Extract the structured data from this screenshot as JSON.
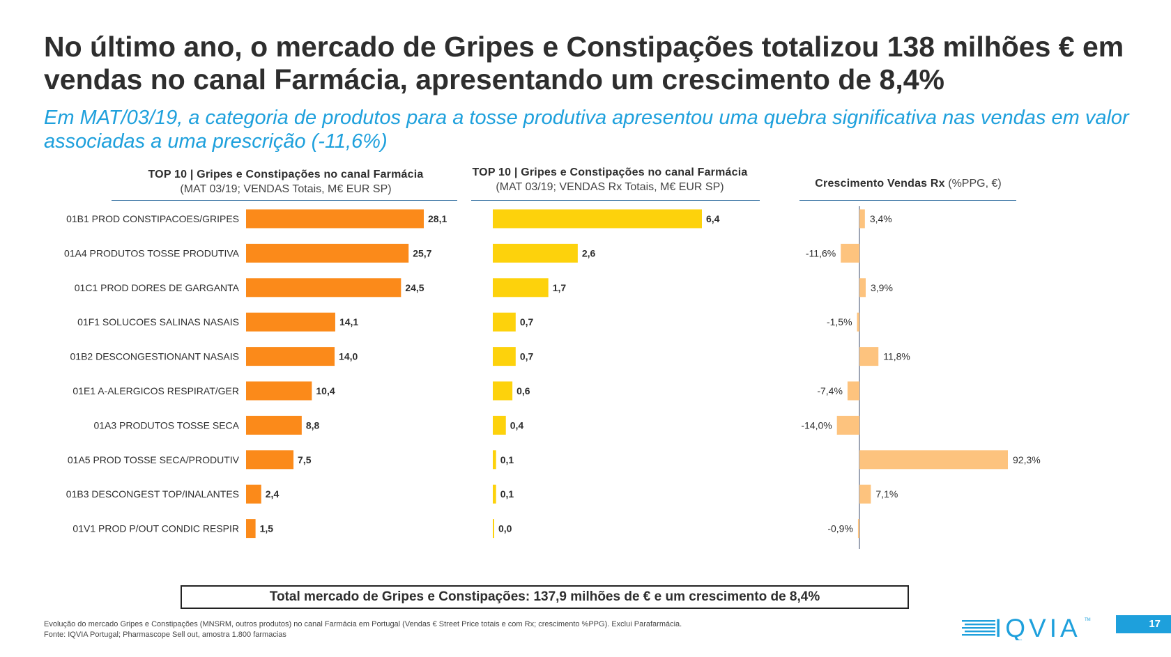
{
  "title": "No último ano, o mercado de Gripes e Constipações totalizou 138 milhões € em vendas no canal Farmácia, apresentando um crescimento de 8,4%",
  "subtitle": "Em MAT/03/19, a categoria de produtos para a tosse produtiva apresentou uma quebra significativa nas vendas em valor associadas a uma prescrição (-11,6%)",
  "colors": {
    "total": "#fb8a1a",
    "rx": "#fdd20c",
    "growth": "#fdc37e",
    "accent": "#1ea0dc"
  },
  "chart_data": [
    {
      "type": "bar",
      "orientation": "horizontal",
      "title": "TOP 10 | Gripes e Constipações no canal Farmácia",
      "subtitle": "(MAT 03/19; VENDAS Totais, M€ EUR SP)",
      "categories": [
        "01B1  PROD CONSTIPACOES/GRIPES",
        "01A4  PRODUTOS TOSSE PRODUTIVA",
        "01C1  PROD DORES DE GARGANTA",
        "01F1  SOLUCOES SALINAS NASAIS",
        "01B2  DESCONGESTIONANT NASAIS",
        "01E1  A-ALERGICOS RESPIRAT/GER",
        "01A3  PRODUTOS TOSSE SECA",
        "01A5  PROD TOSSE SECA/PRODUTIV",
        "01B3  DESCONGEST TOP/INALANTES",
        "01V1  PROD P/OUT CONDIC RESPIR"
      ],
      "values": [
        28.1,
        25.7,
        24.5,
        14.1,
        14.0,
        10.4,
        8.8,
        7.5,
        2.4,
        1.5
      ],
      "labels": [
        "28,1",
        "25,7",
        "24,5",
        "14,1",
        "14,0",
        "10,4",
        "8,8",
        "7,5",
        "2,4",
        "1,5"
      ]
    },
    {
      "type": "bar",
      "orientation": "horizontal",
      "title": "TOP 10 | Gripes e Constipações no canal Farmácia",
      "subtitle": "(MAT 03/19; VENDAS Rx Totais, M€ EUR SP)",
      "values": [
        6.4,
        2.6,
        1.7,
        0.7,
        0.7,
        0.6,
        0.4,
        0.1,
        0.1,
        0.0
      ],
      "labels": [
        "6,4",
        "2,6",
        "1,7",
        "0,7",
        "0,7",
        "0,6",
        "0,4",
        "0,1",
        "0,1",
        "0,0"
      ]
    },
    {
      "type": "bar",
      "orientation": "horizontal",
      "title": "Crescimento Vendas Rx",
      "subtitle": "(%PPG, €)",
      "values": [
        3.4,
        -11.6,
        3.9,
        -1.5,
        11.8,
        -7.4,
        -14.0,
        92.3,
        7.1,
        -0.9
      ],
      "labels": [
        "3,4%",
        "-11,6%",
        "3,9%",
        "-1,5%",
        "11,8%",
        "-7,4%",
        "-14,0%",
        "92,3%",
        "7,1%",
        "-0,9%"
      ]
    }
  ],
  "total_box": "Total mercado de Gripes e Constipações: 137,9 milhões de € e um crescimento de 8,4%",
  "footnote_1": "Evolução do mercado Gripes e Constipações (MNSRM, outros produtos) no canal Farmácia em Portugal (Vendas € Street Price totais e com Rx; crescimento %PPG). Exclui Parafarmácia.",
  "footnote_2": "Fonte: IQVIA Portugal; Pharmascope Sell out, amostra 1.800 farmacias",
  "logo_text": "IQVIA",
  "logo_tm": "TM",
  "page_number": "17"
}
